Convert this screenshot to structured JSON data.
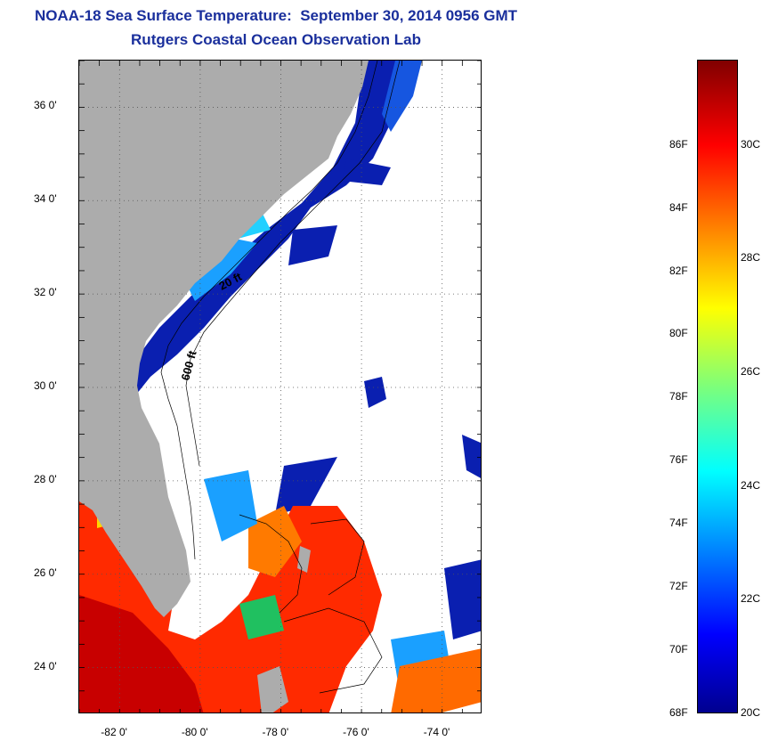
{
  "title_line1": "NOAA-18 Sea Surface Temperature:  September 30, 2014 0956 GMT",
  "title_line2": "Rutgers Coastal Ocean Observation Lab",
  "map": {
    "lon_range": [
      -83,
      -73
    ],
    "lat_range": [
      23,
      37
    ],
    "lat_labels": [
      {
        "value": 24,
        "text": "24 0'"
      },
      {
        "value": 26,
        "text": "26 0'"
      },
      {
        "value": 28,
        "text": "28 0'"
      },
      {
        "value": 30,
        "text": "30 0'"
      },
      {
        "value": 32,
        "text": "32 0'"
      },
      {
        "value": 34,
        "text": "34 0'"
      },
      {
        "value": 36,
        "text": "36 0'"
      }
    ],
    "lon_labels": [
      {
        "value": -82,
        "text": "-82 0'"
      },
      {
        "value": -80,
        "text": "-80 0'"
      },
      {
        "value": -78,
        "text": "-78 0'"
      },
      {
        "value": -76,
        "text": "-76 0'"
      },
      {
        "value": -74,
        "text": "-74 0'"
      }
    ],
    "contour_labels": [
      "20 ft",
      "600 ft"
    ],
    "colors": {
      "land": "#acacac",
      "cloud": "#ffffff",
      "cold_water": "#0a1fb0",
      "cool_water": "#1aa0ff",
      "warm_water": "#ff2a00",
      "hot_water": "#c00000"
    }
  },
  "colorbar": {
    "range_c": [
      20,
      31.5
    ],
    "fahrenheit_labels": [
      "86F",
      "84F",
      "82F",
      "80F",
      "78F",
      "76F",
      "74F",
      "72F",
      "70F",
      "68F"
    ],
    "fahrenheit_values": [
      86,
      84,
      82,
      80,
      78,
      76,
      74,
      72,
      70,
      68
    ],
    "celsius_labels": [
      "30C",
      "28C",
      "26C",
      "24C",
      "22C",
      "20C"
    ],
    "celsius_values": [
      30,
      28,
      26,
      24,
      22,
      20
    ]
  }
}
